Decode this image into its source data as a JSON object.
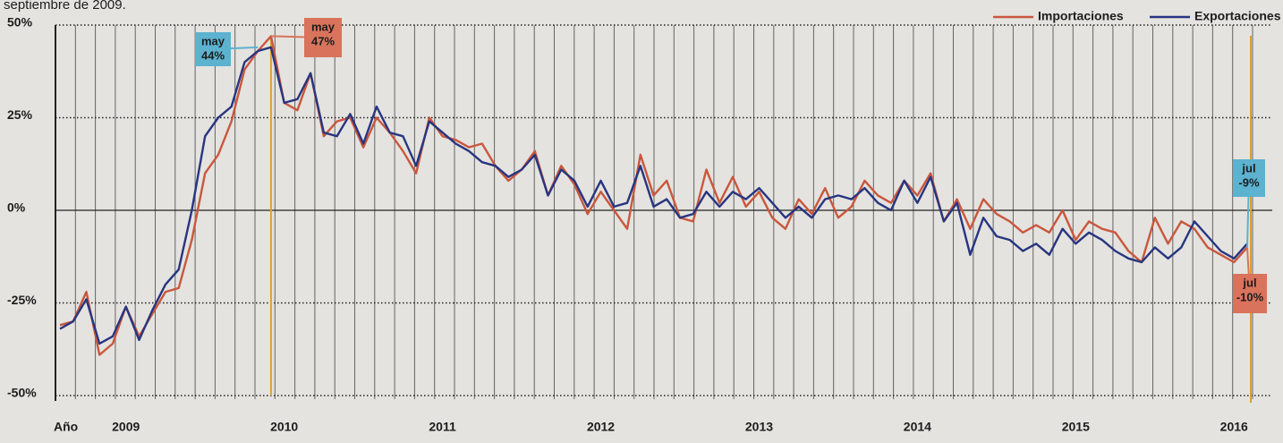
{
  "chart_data": {
    "type": "line",
    "subtitle": "septiembre de 2009.",
    "categories": [
      "Año",
      null,
      null,
      null,
      null,
      "2009",
      null,
      null,
      null,
      null,
      null,
      null,
      null,
      null,
      null,
      null,
      null,
      "2010",
      null,
      null,
      null,
      null,
      null,
      null,
      null,
      null,
      null,
      null,
      null,
      "2011",
      null,
      null,
      null,
      null,
      null,
      null,
      null,
      null,
      null,
      null,
      null,
      "2012",
      null,
      null,
      null,
      null,
      null,
      null,
      null,
      null,
      null,
      null,
      null,
      "2013",
      null,
      null,
      null,
      null,
      null,
      null,
      null,
      null,
      null,
      null,
      null,
      "2014",
      null,
      null,
      null,
      null,
      null,
      null,
      null,
      null,
      null,
      null,
      null,
      "2015",
      null,
      null,
      null,
      null,
      null,
      null,
      null,
      null,
      null,
      null,
      null,
      "2016",
      null
    ],
    "series": [
      {
        "name": "Importaciones",
        "color": "#c9573d",
        "values": [
          -31,
          -30,
          -22,
          -39,
          -36,
          -26,
          -34,
          -28,
          -22,
          -21,
          -8,
          10,
          15,
          24,
          38,
          43,
          47,
          29,
          27,
          37,
          20,
          24,
          25,
          17,
          25,
          21,
          16,
          10,
          25,
          20,
          19,
          17,
          18,
          12,
          8,
          11,
          16,
          4,
          12,
          7,
          -1,
          5,
          0,
          -5,
          15,
          4,
          8,
          -2,
          -3,
          11,
          2,
          9,
          1,
          5,
          -2,
          -5,
          3,
          -1,
          6,
          -2,
          1,
          8,
          4,
          2,
          8,
          4,
          10,
          -3,
          3,
          -5,
          3,
          -1,
          -3,
          -6,
          -4,
          -6,
          0,
          -8,
          -3,
          -5,
          -6,
          -11,
          -14,
          -2,
          -9,
          -3,
          -5,
          -10,
          -12,
          -14,
          -10
        ]
      },
      {
        "name": "Exportaciones",
        "color": "#283580",
        "values": [
          -32,
          -30,
          -24,
          -36,
          -34,
          -26,
          -35,
          -27,
          -20,
          -16,
          0,
          20,
          25,
          28,
          40,
          43,
          44,
          29,
          30,
          37,
          21,
          20,
          26,
          18,
          28,
          21,
          20,
          12,
          24,
          21,
          18,
          16,
          13,
          12,
          9,
          11,
          15,
          4,
          11,
          8,
          1,
          8,
          1,
          2,
          12,
          1,
          3,
          -2,
          -1,
          5,
          1,
          5,
          3,
          6,
          2,
          -2,
          1,
          -2,
          3,
          4,
          3,
          6,
          2,
          0,
          8,
          2,
          9,
          -3,
          2,
          -12,
          -2,
          -7,
          -8,
          -11,
          -9,
          -12,
          -5,
          -9,
          -6,
          -8,
          -11,
          -13,
          -14,
          -10,
          -13,
          -10,
          -3,
          -7,
          -11,
          -13,
          -9
        ]
      }
    ],
    "ylim": [
      -50,
      50
    ],
    "yticks": [
      {
        "value": 50,
        "label": "50%"
      },
      {
        "value": 25,
        "label": "25%"
      },
      {
        "value": 0,
        "label": "0%"
      },
      {
        "value": -25,
        "label": "-25%"
      },
      {
        "value": -50,
        "label": "-50%"
      }
    ],
    "annotations": [
      {
        "lines": [
          "may",
          "44%"
        ],
        "color": "#5cb2cf"
      },
      {
        "lines": [
          "may",
          "47%"
        ],
        "color": "#d9735c"
      },
      {
        "lines": [
          "jul",
          "-9%"
        ],
        "color": "#5cb2cf"
      },
      {
        "lines": [
          "jul",
          "-10%"
        ],
        "color": "#d9735c"
      }
    ],
    "legend": "top-right",
    "grid": true
  }
}
